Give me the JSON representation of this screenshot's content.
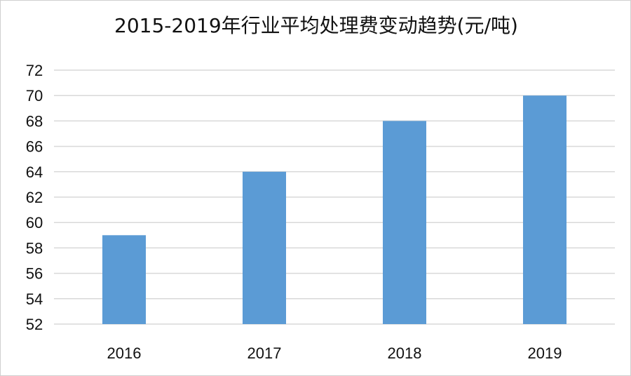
{
  "chart_data": {
    "type": "bar",
    "title": "2015-2019年行业平均处理费变动趋势(元/吨)",
    "categories": [
      "2016",
      "2017",
      "2018",
      "2019"
    ],
    "values": [
      59,
      64,
      68,
      70
    ],
    "xlabel": "",
    "ylabel": "",
    "ylim": [
      52,
      72
    ],
    "yticks": [
      52,
      54,
      56,
      58,
      60,
      62,
      64,
      66,
      68,
      70,
      72
    ],
    "grid": true,
    "legend": "none",
    "bar_color": "#5b9bd5",
    "grid_color": "#d9d9d9"
  }
}
